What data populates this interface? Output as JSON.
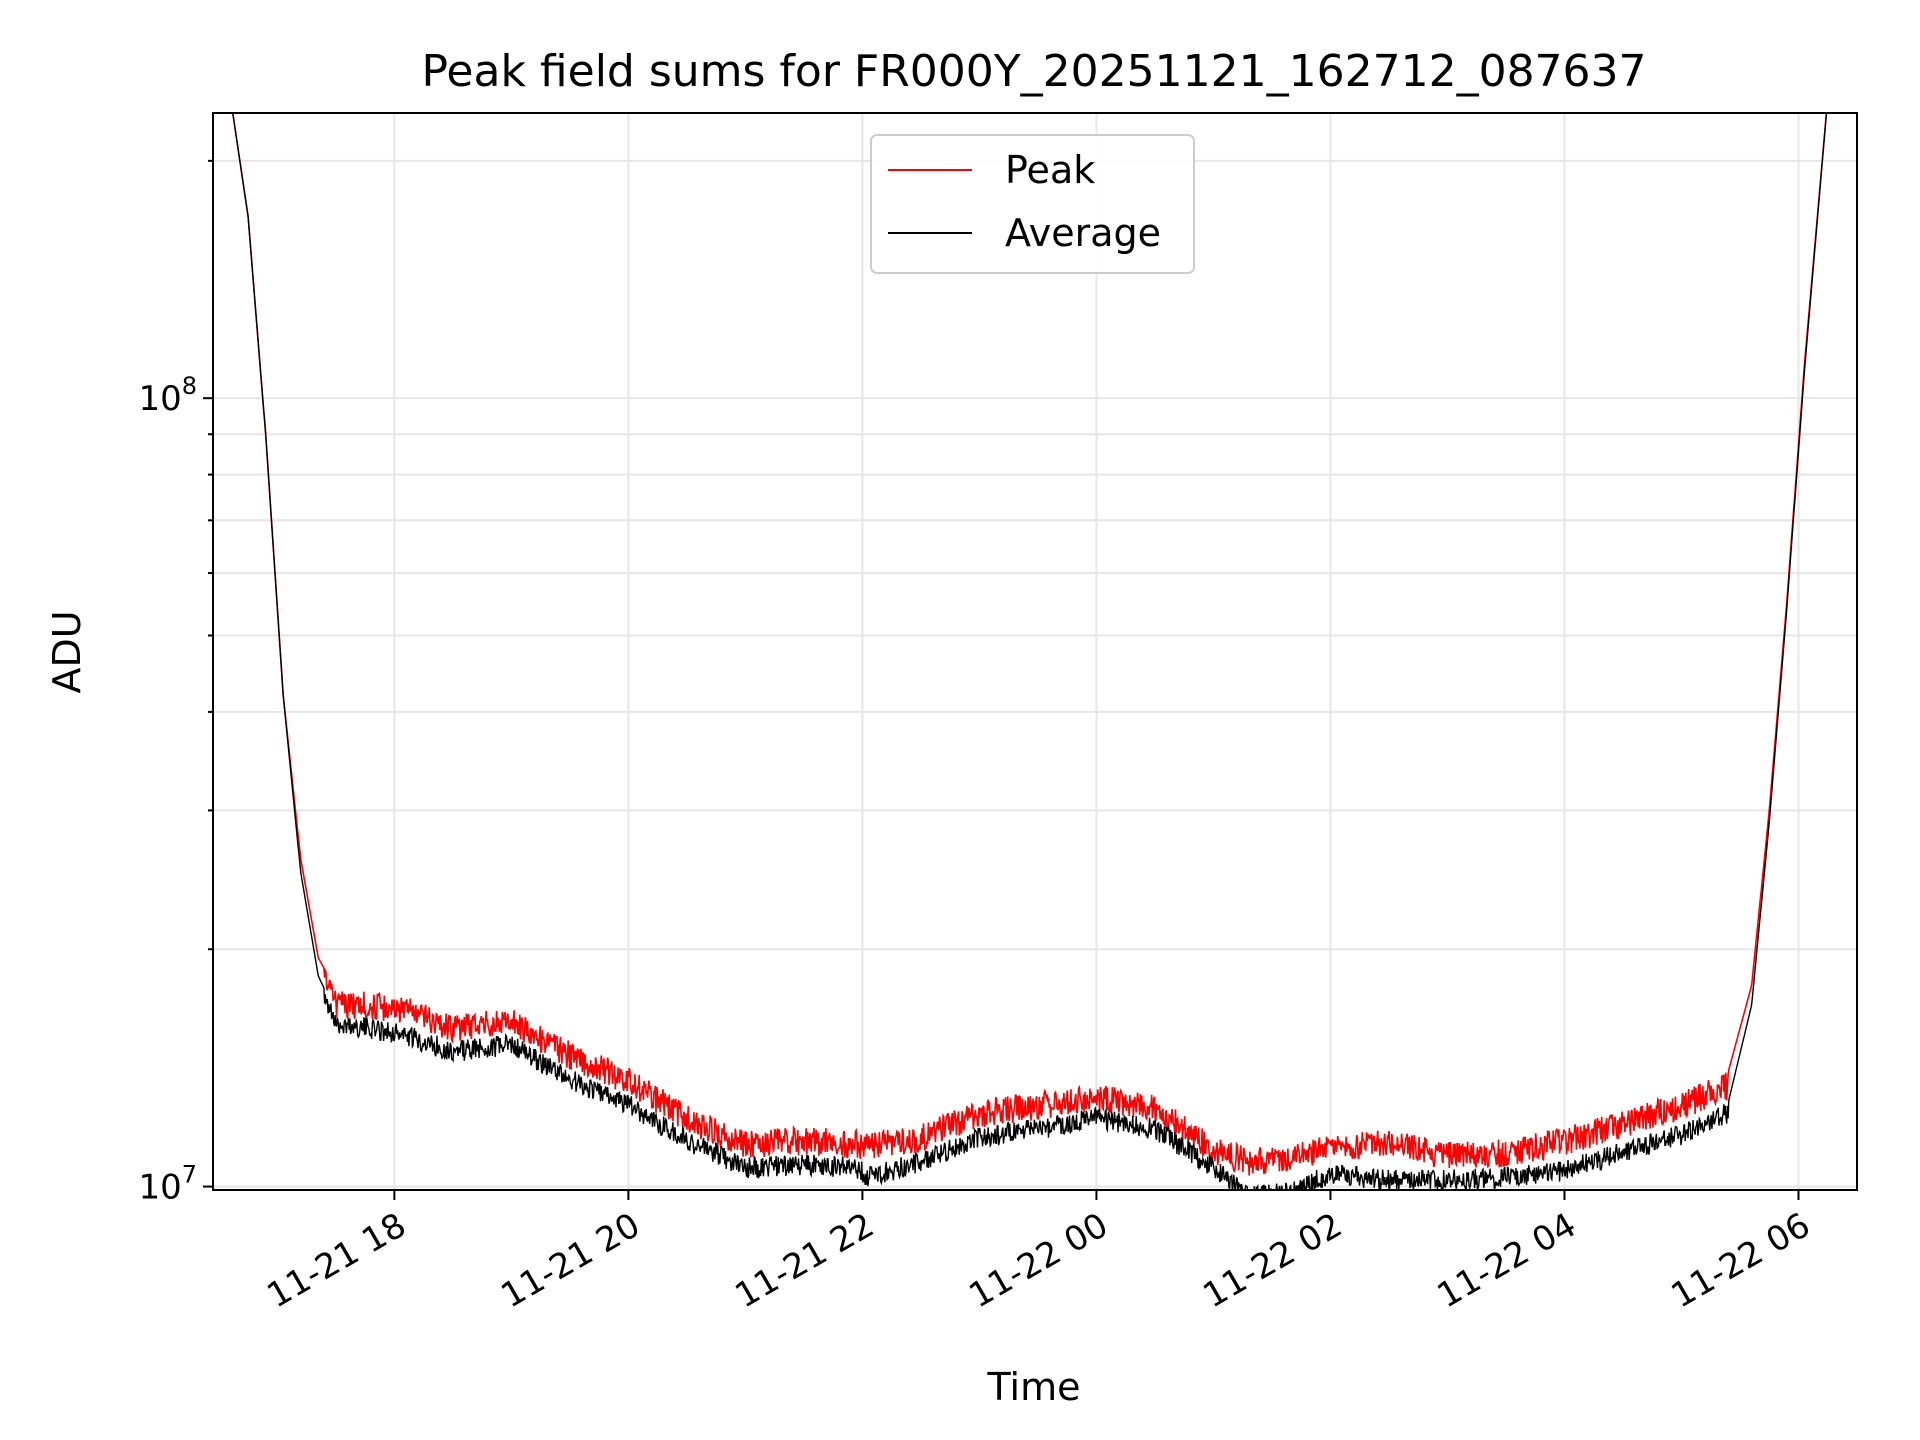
{
  "chart_data": {
    "type": "line",
    "title": "Peak field sums for FR000Y_20251121_162712_087637",
    "xlabel": "Time",
    "ylabel": "ADU",
    "yscale": "log",
    "ylim": [
      9900000,
      230000000
    ],
    "xlim_hours": [
      16.45,
      30.5
    ],
    "grid": true,
    "legend_position": "top-center",
    "x_tick_labels": [
      "11-21 18",
      "11-21 20",
      "11-21 22",
      "11-22 00",
      "11-22 02",
      "11-22 04",
      "11-22 06"
    ],
    "x_tick_hours": [
      18,
      20,
      22,
      24,
      26,
      28,
      30
    ],
    "y_tick_labels": [
      {
        "base": "10",
        "exp": "7",
        "value": 10000000
      },
      {
        "base": "10",
        "exp": "8",
        "value": 100000000
      }
    ],
    "series": [
      {
        "name": "Peak",
        "color": "#ff0000",
        "x_hours": [
          16.6,
          16.75,
          16.9,
          17.05,
          17.2,
          17.35,
          17.5,
          18,
          18.5,
          19,
          19.5,
          20,
          20.5,
          21,
          21.5,
          21.95,
          22.05,
          22.5,
          23,
          23.5,
          24,
          24.5,
          25,
          25.3,
          25.7,
          26,
          26.5,
          27,
          27.5,
          28,
          28.5,
          29,
          29.4,
          29.6,
          29.75,
          29.9,
          30.05,
          30.25
        ],
        "values": [
          240000000,
          170000000,
          90000000,
          42000000,
          26000000,
          19500000,
          17800000,
          17600000,
          16600000,
          16900000,
          15300000,
          14200000,
          12700000,
          11800000,
          11900000,
          11800000,
          11700000,
          12000000,
          12900000,
          13200000,
          13500000,
          13100000,
          11600000,
          11200000,
          11400000,
          11700000,
          11800000,
          11400000,
          11500000,
          11900000,
          12500000,
          13200000,
          14000000,
          18000000,
          30000000,
          55000000,
          110000000,
          240000000
        ]
      },
      {
        "name": "Average",
        "color": "#000000",
        "x_hours": [
          16.6,
          16.75,
          16.9,
          17.05,
          17.2,
          17.35,
          17.5,
          18,
          18.5,
          19,
          19.5,
          20,
          20.5,
          21,
          21.5,
          21.95,
          22.05,
          22.5,
          23,
          23.5,
          24,
          24.5,
          25,
          25.3,
          25.7,
          26,
          26.5,
          27,
          27.5,
          28,
          28.5,
          29,
          29.4,
          29.6,
          29.75,
          29.9,
          30.05,
          30.25
        ],
        "values": [
          240000000,
          170000000,
          90000000,
          42000000,
          25000000,
          18500000,
          16600000,
          16200000,
          15300000,
          15600000,
          14100000,
          13100000,
          11800000,
          10900000,
          11000000,
          10900000,
          10600000,
          11100000,
          11900000,
          12200000,
          12600000,
          12200000,
          10900000,
          10000000,
          10200000,
          10700000,
          10500000,
          10500000,
          10600000,
          10800000,
          11400000,
          12000000,
          12800000,
          17000000,
          29000000,
          54000000,
          108000000,
          240000000
        ]
      }
    ]
  }
}
